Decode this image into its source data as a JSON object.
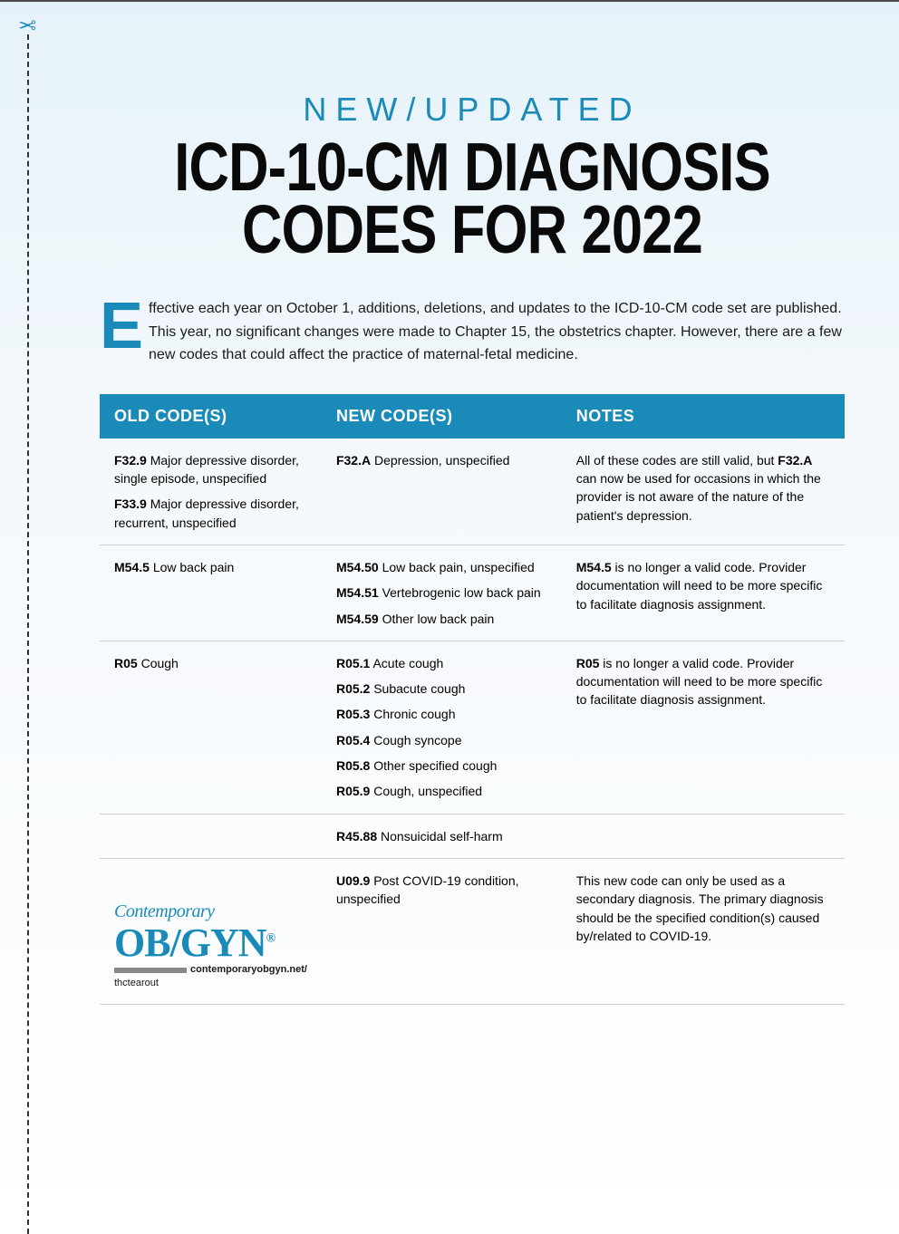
{
  "colors": {
    "accent": "#1a8bb8",
    "text": "#1a1a1a",
    "headerBg": "#1a8bb8",
    "headerText": "#ffffff",
    "rowBorder": "#d0d0d0",
    "bgTop": "#e6f2f9",
    "bgBottom": "#ffffff"
  },
  "scissors_glyph": "✂",
  "header": {
    "eyebrow": "NEW/UPDATED",
    "title": "ICD-10-CM DIAGNOSIS CODES FOR 2022"
  },
  "intro": {
    "dropcap": "E",
    "text": "ffective each year on October 1, additions, deletions, and updates to the ICD-10-CM code set are published. This year, no significant changes were made to Chapter 15, the obstetrics chapter. However, there are a few new codes that could affect the practice of maternal-fetal medicine."
  },
  "table": {
    "columns": [
      "OLD CODE(S)",
      "NEW CODE(S)",
      "NOTES"
    ],
    "rows": [
      {
        "old": [
          {
            "code": "F32.9",
            "desc": "Major depressive disorder, single episode, unspecified"
          },
          {
            "code": "F33.9",
            "desc": "Major depressive disorder, recurrent, unspecified"
          }
        ],
        "new": [
          {
            "code": "F32.A",
            "desc": "Depression, unspecified"
          }
        ],
        "notes_pre": "All of these codes are still valid, but ",
        "notes_bold": "F32.A",
        "notes_post": " can now be used for occasions in which the provider is not aware of the nature of the patient's depression."
      },
      {
        "old": [
          {
            "code": "M54.5",
            "desc": "Low back pain"
          }
        ],
        "new": [
          {
            "code": "M54.50",
            "desc": "Low back pain, unspecified"
          },
          {
            "code": "M54.51",
            "desc": "Vertebrogenic low back pain"
          },
          {
            "code": "M54.59",
            "desc": "Other low back pain"
          }
        ],
        "notes_pre": "",
        "notes_bold": "M54.5",
        "notes_post": " is no longer a valid code. Provider documentation will need to be more specific to facilitate diagnosis assignment."
      },
      {
        "old": [
          {
            "code": "R05",
            "desc": "Cough"
          }
        ],
        "new": [
          {
            "code": "R05.1",
            "desc": "Acute cough"
          },
          {
            "code": "R05.2",
            "desc": "Subacute cough"
          },
          {
            "code": "R05.3",
            "desc": "Chronic cough"
          },
          {
            "code": "R05.4",
            "desc": "Cough syncope"
          },
          {
            "code": "R05.8",
            "desc": "Other specified cough"
          },
          {
            "code": "R05.9",
            "desc": "Cough, unspecified"
          }
        ],
        "notes_pre": "",
        "notes_bold": "R05",
        "notes_post": " is no longer a valid code. Provider documentation will need to be more specific to facilitate diagnosis assignment."
      },
      {
        "old": [],
        "new": [
          {
            "code": "R45.88",
            "desc": "Nonsuicidal self-harm"
          }
        ],
        "notes_pre": "",
        "notes_bold": "",
        "notes_post": ""
      },
      {
        "old": [],
        "new": [
          {
            "code": "U09.9",
            "desc": "Post COVID-19 condition, unspecified"
          }
        ],
        "notes_pre": "This new code can only be used as a secondary diagnosis. The primary diagnosis should be the specified condition(s) caused by/related to COVID-19.",
        "notes_bold": "",
        "notes_post": ""
      }
    ]
  },
  "logo": {
    "line1": "Contemporary",
    "line2": "OB/GYN",
    "reg": "®",
    "url": "contemporaryobgyn.net/",
    "path": "thctearout"
  }
}
